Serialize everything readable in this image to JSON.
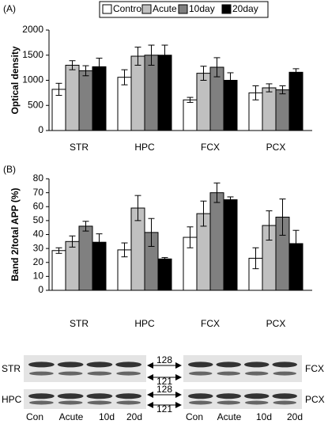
{
  "chart_data": [
    {
      "type": "bar",
      "panel_label": "(A)",
      "y_label": "Optical density",
      "legend": true,
      "categories": [
        "STR",
        "HPC",
        "FCX",
        "PCX"
      ],
      "series": [
        {
          "name": "Control",
          "color": "#ffffff",
          "values": [
            820,
            1060,
            610,
            750
          ],
          "errors": [
            120,
            150,
            50,
            140
          ]
        },
        {
          "name": "Acute",
          "color": "#c0c0c0",
          "values": [
            1300,
            1480,
            1140,
            850
          ],
          "errors": [
            90,
            180,
            140,
            80
          ]
        },
        {
          "name": "10day",
          "color": "#808080",
          "values": [
            1190,
            1500,
            1260,
            810
          ],
          "errors": [
            100,
            200,
            190,
            80
          ]
        },
        {
          "name": "20day",
          "color": "#000000",
          "values": [
            1270,
            1500,
            1000,
            1160
          ],
          "errors": [
            170,
            200,
            150,
            70
          ]
        }
      ],
      "ylim": [
        0,
        2000
      ],
      "yticks": [
        0,
        500,
        1000,
        1500,
        2000
      ]
    },
    {
      "type": "bar",
      "panel_label": "(B)",
      "y_label": "Band 2/total APP (%)",
      "legend": false,
      "categories": [
        "STR",
        "HPC",
        "FCX",
        "PCX"
      ],
      "series": [
        {
          "name": "Control",
          "color": "#ffffff",
          "values": [
            28.5,
            29,
            38,
            23
          ],
          "errors": [
            2,
            5,
            7.5,
            7.5
          ]
        },
        {
          "name": "Acute",
          "color": "#c0c0c0",
          "values": [
            35,
            59,
            55,
            46.5
          ],
          "errors": [
            4,
            9,
            9,
            10.5
          ]
        },
        {
          "name": "10day",
          "color": "#808080",
          "values": [
            46,
            41.5,
            70,
            52.5
          ],
          "errors": [
            3.5,
            10,
            7,
            13
          ]
        },
        {
          "name": "20day",
          "color": "#000000",
          "values": [
            34.5,
            22.5,
            65,
            33.5
          ],
          "errors": [
            6,
            1,
            2,
            9.5
          ]
        }
      ],
      "ylim": [
        0,
        80
      ],
      "yticks": [
        0,
        10,
        20,
        30,
        40,
        50,
        60,
        70,
        80
      ]
    }
  ],
  "blot": {
    "left_rows": [
      "STR",
      "HPC"
    ],
    "right_rows": [
      "FCX",
      "PCX"
    ],
    "markers": [
      "128",
      "121"
    ],
    "lanes": [
      "Con",
      "Acute",
      "10d",
      "20d"
    ]
  }
}
